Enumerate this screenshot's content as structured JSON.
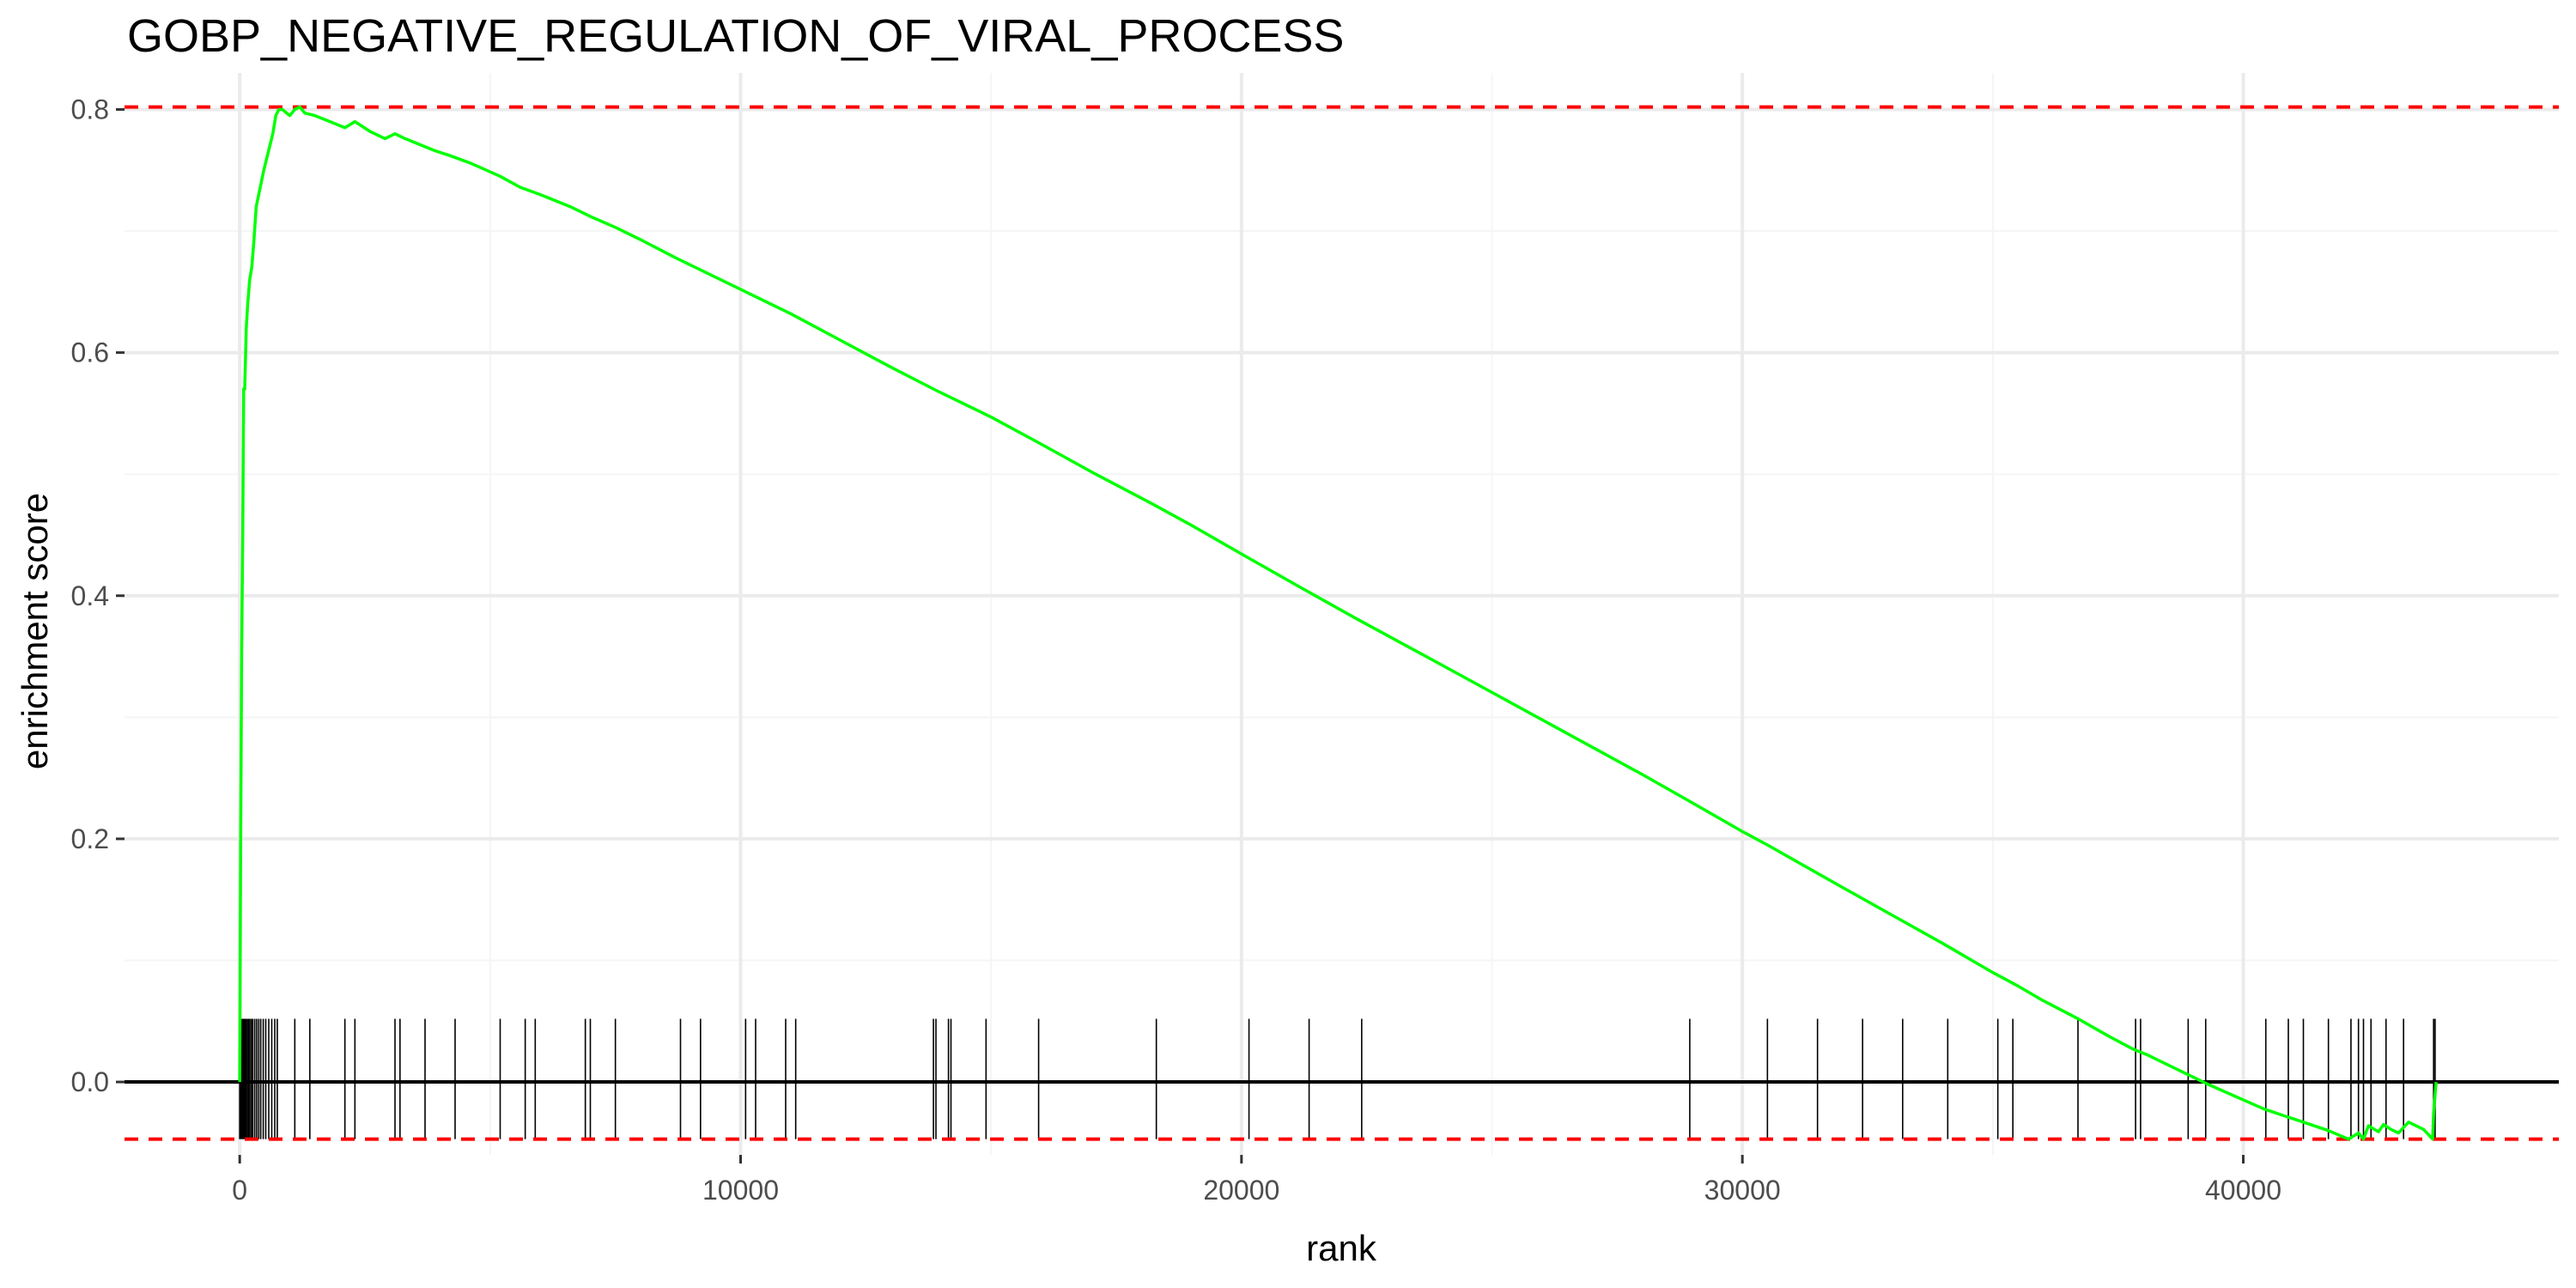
{
  "chart_data": {
    "type": "line",
    "title": "GOBP_NEGATIVE_REGULATION_OF_VIRAL_PROCESS",
    "xlabel": "rank",
    "ylabel": "enrichment score",
    "xlim": [
      -2300,
      46300
    ],
    "ylim": [
      -0.06,
      0.83
    ],
    "x_ticks": [
      0,
      10000,
      20000,
      30000,
      40000
    ],
    "x_tick_labels": [
      "0",
      "10000",
      "20000",
      "30000",
      "40000"
    ],
    "y_ticks": [
      0.0,
      0.2,
      0.4,
      0.6,
      0.8
    ],
    "y_tick_labels": [
      "0.0",
      "0.2",
      "0.4",
      "0.6",
      "0.8"
    ],
    "grid": true,
    "legend": "none",
    "colors": {
      "curve": "#00ff00",
      "threshold": "#ff0000",
      "ticks": "#000000",
      "zero_line": "#000000"
    },
    "max_es": 0.802,
    "min_es": -0.047,
    "ranks_end": 43850,
    "series": [
      {
        "x": [
          0,
          20,
          40,
          60,
          80,
          100,
          130,
          160,
          200,
          240,
          280,
          330,
          380,
          430,
          480,
          540,
          600,
          660,
          720,
          780,
          850,
          1000,
          1100,
          1200,
          1300,
          1500,
          1800,
          2100,
          2300,
          2600,
          2900,
          3100,
          3300,
          3600,
          3900,
          4200,
          4600,
          5200,
          5600,
          6000,
          6600,
          7000,
          7500,
          8000,
          8700,
          9000,
          9500,
          10200,
          10500,
          11000,
          12000,
          13000,
          13900,
          14100,
          14500,
          15000,
          15900,
          17000,
          18200,
          19000,
          20100,
          21300,
          22300,
          24000,
          26000,
          28000,
          28900,
          30000,
          30500,
          32000,
          33000,
          34000,
          35000,
          35500,
          36000,
          36700,
          37300,
          37800,
          38100,
          38900,
          39300,
          40400,
          40900,
          41200,
          41700,
          42100,
          42300,
          42400,
          42500,
          42700,
          42800,
          42950,
          43100,
          43300,
          43600,
          43780,
          43800,
          43850
        ],
        "y": [
          0.0,
          0.2,
          0.36,
          0.45,
          0.57,
          0.57,
          0.62,
          0.64,
          0.66,
          0.67,
          0.69,
          0.72,
          0.73,
          0.74,
          0.75,
          0.76,
          0.77,
          0.78,
          0.795,
          0.8,
          0.8,
          0.795,
          0.8,
          0.802,
          0.797,
          0.795,
          0.79,
          0.785,
          0.79,
          0.782,
          0.776,
          0.78,
          0.776,
          0.771,
          0.766,
          0.762,
          0.756,
          0.745,
          0.736,
          0.73,
          0.72,
          0.712,
          0.703,
          0.693,
          0.678,
          0.672,
          0.662,
          0.648,
          0.642,
          0.632,
          0.61,
          0.588,
          0.569,
          0.565,
          0.557,
          0.547,
          0.527,
          0.502,
          0.476,
          0.458,
          0.432,
          0.404,
          0.381,
          0.343,
          0.298,
          0.253,
          0.232,
          0.206,
          0.195,
          0.16,
          0.137,
          0.114,
          0.09,
          0.079,
          0.067,
          0.052,
          0.038,
          0.027,
          0.022,
          0.006,
          -0.002,
          -0.022,
          -0.029,
          -0.033,
          -0.04,
          -0.047,
          -0.042,
          -0.047,
          -0.036,
          -0.041,
          -0.035,
          -0.039,
          -0.042,
          -0.033,
          -0.039,
          -0.047,
          -0.025,
          0.0
        ]
      }
    ],
    "threshold_lines": [
      0.802,
      -0.047
    ],
    "hit_ranks": [
      0,
      25,
      45,
      65,
      85,
      105,
      125,
      150,
      175,
      200,
      230,
      260,
      300,
      340,
      380,
      420,
      470,
      520,
      580,
      640,
      700,
      750,
      1100,
      1400,
      2100,
      2300,
      3100,
      3200,
      3700,
      4300,
      5200,
      5700,
      5900,
      6900,
      7000,
      7500,
      8800,
      9200,
      10100,
      10300,
      10900,
      11100,
      13850,
      13900,
      14150,
      14200,
      14900,
      15950,
      18300,
      20150,
      21350,
      22400,
      28950,
      30500,
      31500,
      32400,
      33200,
      34100,
      35100,
      35400,
      36700,
      37850,
      37950,
      38900,
      39250,
      40450,
      40900,
      41200,
      41700,
      42150,
      42300,
      42400,
      42550,
      42850,
      43200,
      43800,
      43830
    ]
  }
}
